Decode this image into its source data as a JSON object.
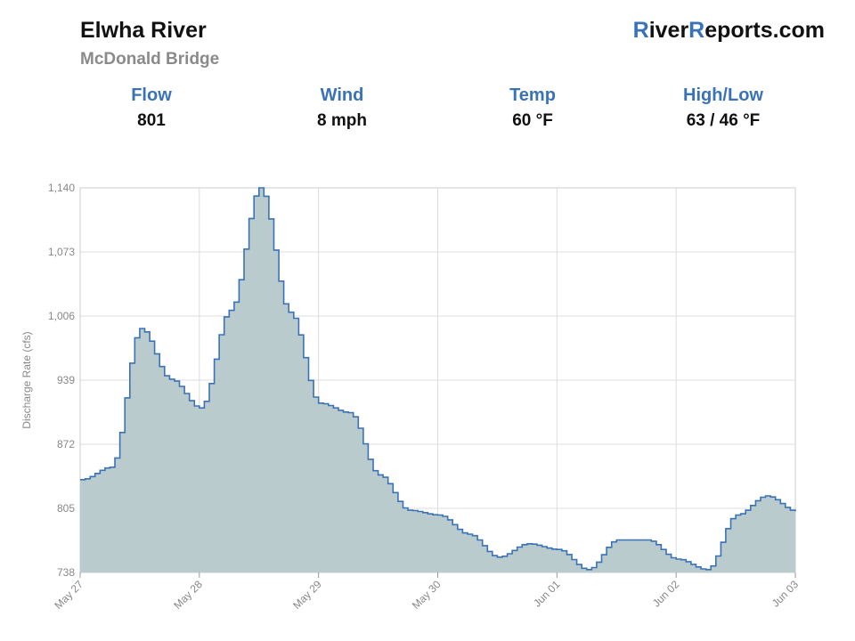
{
  "header": {
    "title": "Elwha River",
    "subtitle": "McDonald Bridge",
    "brand": {
      "r1": "R",
      "p1": "iver",
      "r2": "R",
      "p2": "eports.com"
    }
  },
  "stats": [
    {
      "label": "Flow",
      "value": "801"
    },
    {
      "label": "Wind",
      "value": "8 mph"
    },
    {
      "label": "Temp",
      "value": "60 °F"
    },
    {
      "label": "High/Low",
      "value": "63 / 46 °F"
    }
  ],
  "colors": {
    "accent": "#3a72b8",
    "line": "#3a72b8",
    "fill": "#b9cbcd",
    "grid": "#dcdcdc",
    "axis_text": "#888888"
  },
  "chart_data": {
    "type": "area",
    "ylabel": "Discharge Rate (cfs)",
    "xlabel": "",
    "ylim": [
      738,
      1140
    ],
    "y_ticks": [
      738,
      805,
      872,
      939,
      1006,
      1073,
      1140
    ],
    "y_tick_labels": [
      "738",
      "805",
      "872",
      "939",
      "1,006",
      "1,073",
      "1,140"
    ],
    "x_ticks": [
      "May 27",
      "May 28",
      "May 29",
      "May 30",
      "Jun 01",
      "Jun 02",
      "Jun 03"
    ],
    "x_range_days": [
      0,
      6
    ],
    "grid": true,
    "step": true,
    "series": [
      {
        "x_days": [
          0,
          0.25,
          0.5,
          0.75,
          1,
          1.25,
          1.5,
          1.75,
          2,
          2.25,
          2.5,
          2.75,
          3,
          3.25,
          3.5,
          3.75,
          4,
          4.25,
          4.5,
          4.75,
          5,
          5.25,
          5.5,
          5.75,
          6
        ],
        "values": [
          835,
          848,
          993,
          940,
          910,
          1012,
          1140,
          1010,
          915,
          905,
          840,
          803,
          798,
          778,
          754,
          768,
          762,
          741,
          772,
          772,
          752,
          741,
          798,
          818,
          802
        ]
      }
    ]
  }
}
